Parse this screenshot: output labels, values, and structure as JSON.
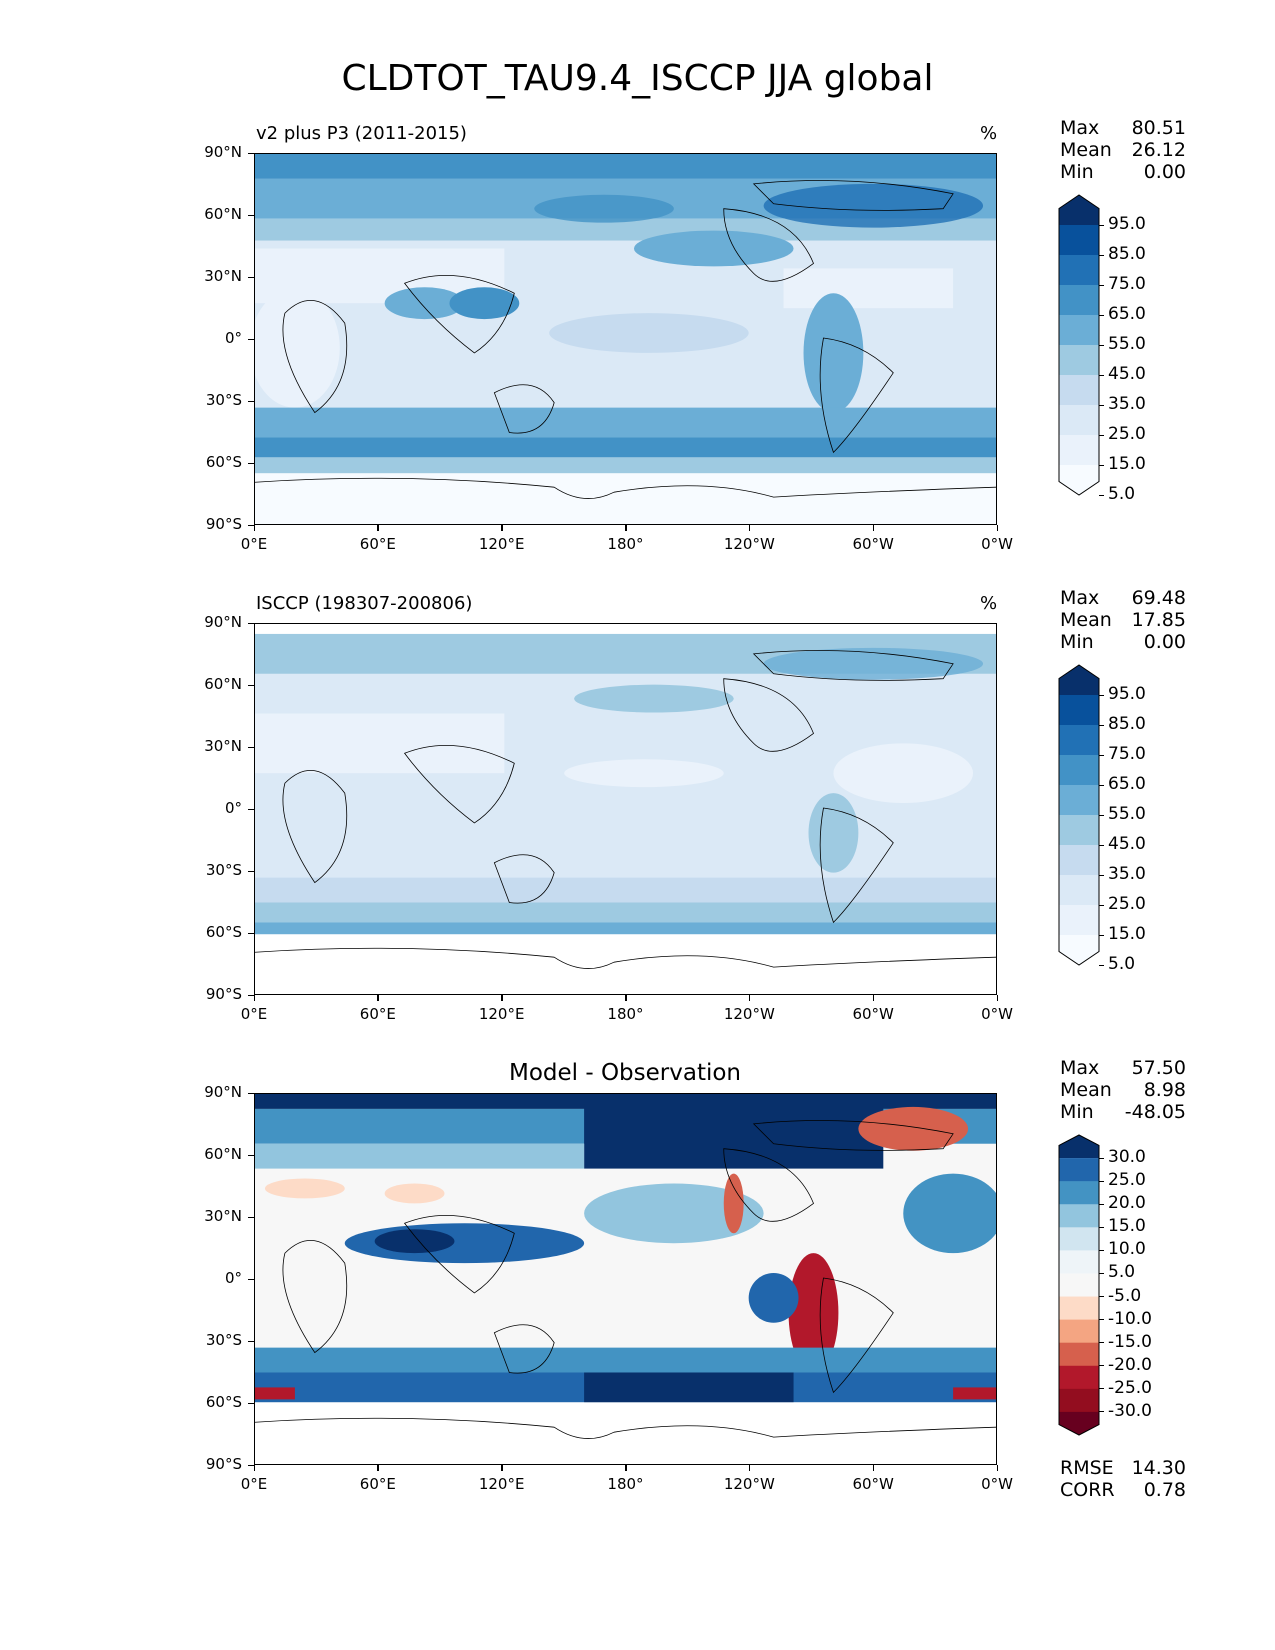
{
  "title": "CLDTOT_TAU9.4_ISCCP JJA global",
  "axes": {
    "yticks": [
      "90°N",
      "60°N",
      "30°N",
      "0°",
      "30°S",
      "60°S",
      "90°S"
    ],
    "xticks": [
      "0°E",
      "60°E",
      "120°E",
      "180°",
      "120°W",
      "60°W",
      "0°W"
    ]
  },
  "panels": [
    {
      "label": "v2 plus P3 (2011-2015)",
      "units": "%",
      "stats": {
        "max_label": "Max",
        "max": "80.51",
        "mean_label": "Mean",
        "mean": "26.12",
        "min_label": "Min",
        "min": "0.00"
      },
      "colorbar": {
        "labels": [
          "95.0",
          "85.0",
          "75.0",
          "65.0",
          "55.0",
          "45.0",
          "35.0",
          "25.0",
          "15.0",
          "5.0"
        ],
        "colors": [
          "#08306b",
          "#08519c",
          "#2171b5",
          "#4292c6",
          "#6baed6",
          "#9ecae1",
          "#c6dbef",
          "#dbe9f6",
          "#eaf2fb",
          "#f7fbff"
        ]
      }
    },
    {
      "label": "ISCCP (198307-200806)",
      "units": "%",
      "stats": {
        "max_label": "Max",
        "max": "69.48",
        "mean_label": "Mean",
        "mean": "17.85",
        "min_label": "Min",
        "min": "0.00"
      },
      "colorbar": {
        "labels": [
          "95.0",
          "85.0",
          "75.0",
          "65.0",
          "55.0",
          "45.0",
          "35.0",
          "25.0",
          "15.0",
          "5.0"
        ],
        "colors": [
          "#08306b",
          "#08519c",
          "#2171b5",
          "#4292c6",
          "#6baed6",
          "#9ecae1",
          "#c6dbef",
          "#dbe9f6",
          "#eaf2fb",
          "#f7fbff"
        ]
      }
    },
    {
      "label": "Model - Observation",
      "stats": {
        "max_label": "Max",
        "max": "57.50",
        "mean_label": "Mean",
        "mean": "8.98",
        "min_label": "Min",
        "min": "-48.05"
      },
      "extra_stats": {
        "rmse_label": "RMSE",
        "rmse": "14.30",
        "corr_label": "CORR",
        "corr": "0.78"
      },
      "colorbar": {
        "labels": [
          "30.0",
          "25.0",
          "20.0",
          "15.0",
          "10.0",
          "5.0",
          "-5.0",
          "-10.0",
          "-15.0",
          "-20.0",
          "-25.0",
          "-30.0"
        ],
        "colors": [
          "#08306b",
          "#2166ac",
          "#4393c3",
          "#92c5de",
          "#d1e5f0",
          "#eef4f8",
          "#f7f7f7",
          "#fddbc7",
          "#f4a582",
          "#d6604d",
          "#b2182b",
          "#930d1f",
          "#67001f"
        ]
      }
    }
  ]
}
